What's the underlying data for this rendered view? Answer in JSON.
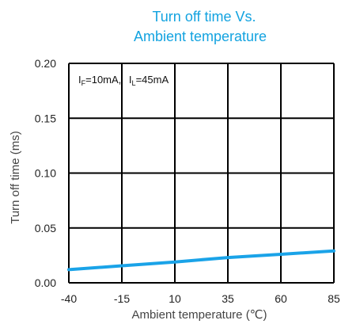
{
  "chart_data": {
    "type": "line",
    "title_lines": [
      "Turn off time Vs.",
      "Ambient temperature"
    ],
    "xlabel": "Ambient temperature (℃)",
    "ylabel": "Turn off time  (ms)",
    "x_ticks": [
      -40,
      -15,
      10,
      35,
      60,
      85
    ],
    "y_ticks": [
      "0.00",
      "0.05",
      "0.10",
      "0.15",
      "0.20"
    ],
    "xlim": [
      -40,
      85
    ],
    "ylim": [
      0,
      0.2
    ],
    "grid": true,
    "annotation": {
      "if_symbol": "I",
      "if_sub": "F",
      "if_value": "=10mA,",
      "il_symbol": "I",
      "il_sub": "L",
      "il_value": "=45mA"
    },
    "series": [
      {
        "color": "#1aa3e8",
        "x": [
          -40,
          -15,
          10,
          35,
          60,
          85
        ],
        "y": [
          0.012,
          0.0155,
          0.019,
          0.023,
          0.026,
          0.029
        ]
      }
    ]
  },
  "colors": {
    "title": "#13a3e0",
    "grid": "#000000",
    "series": "#1aa3e8"
  }
}
